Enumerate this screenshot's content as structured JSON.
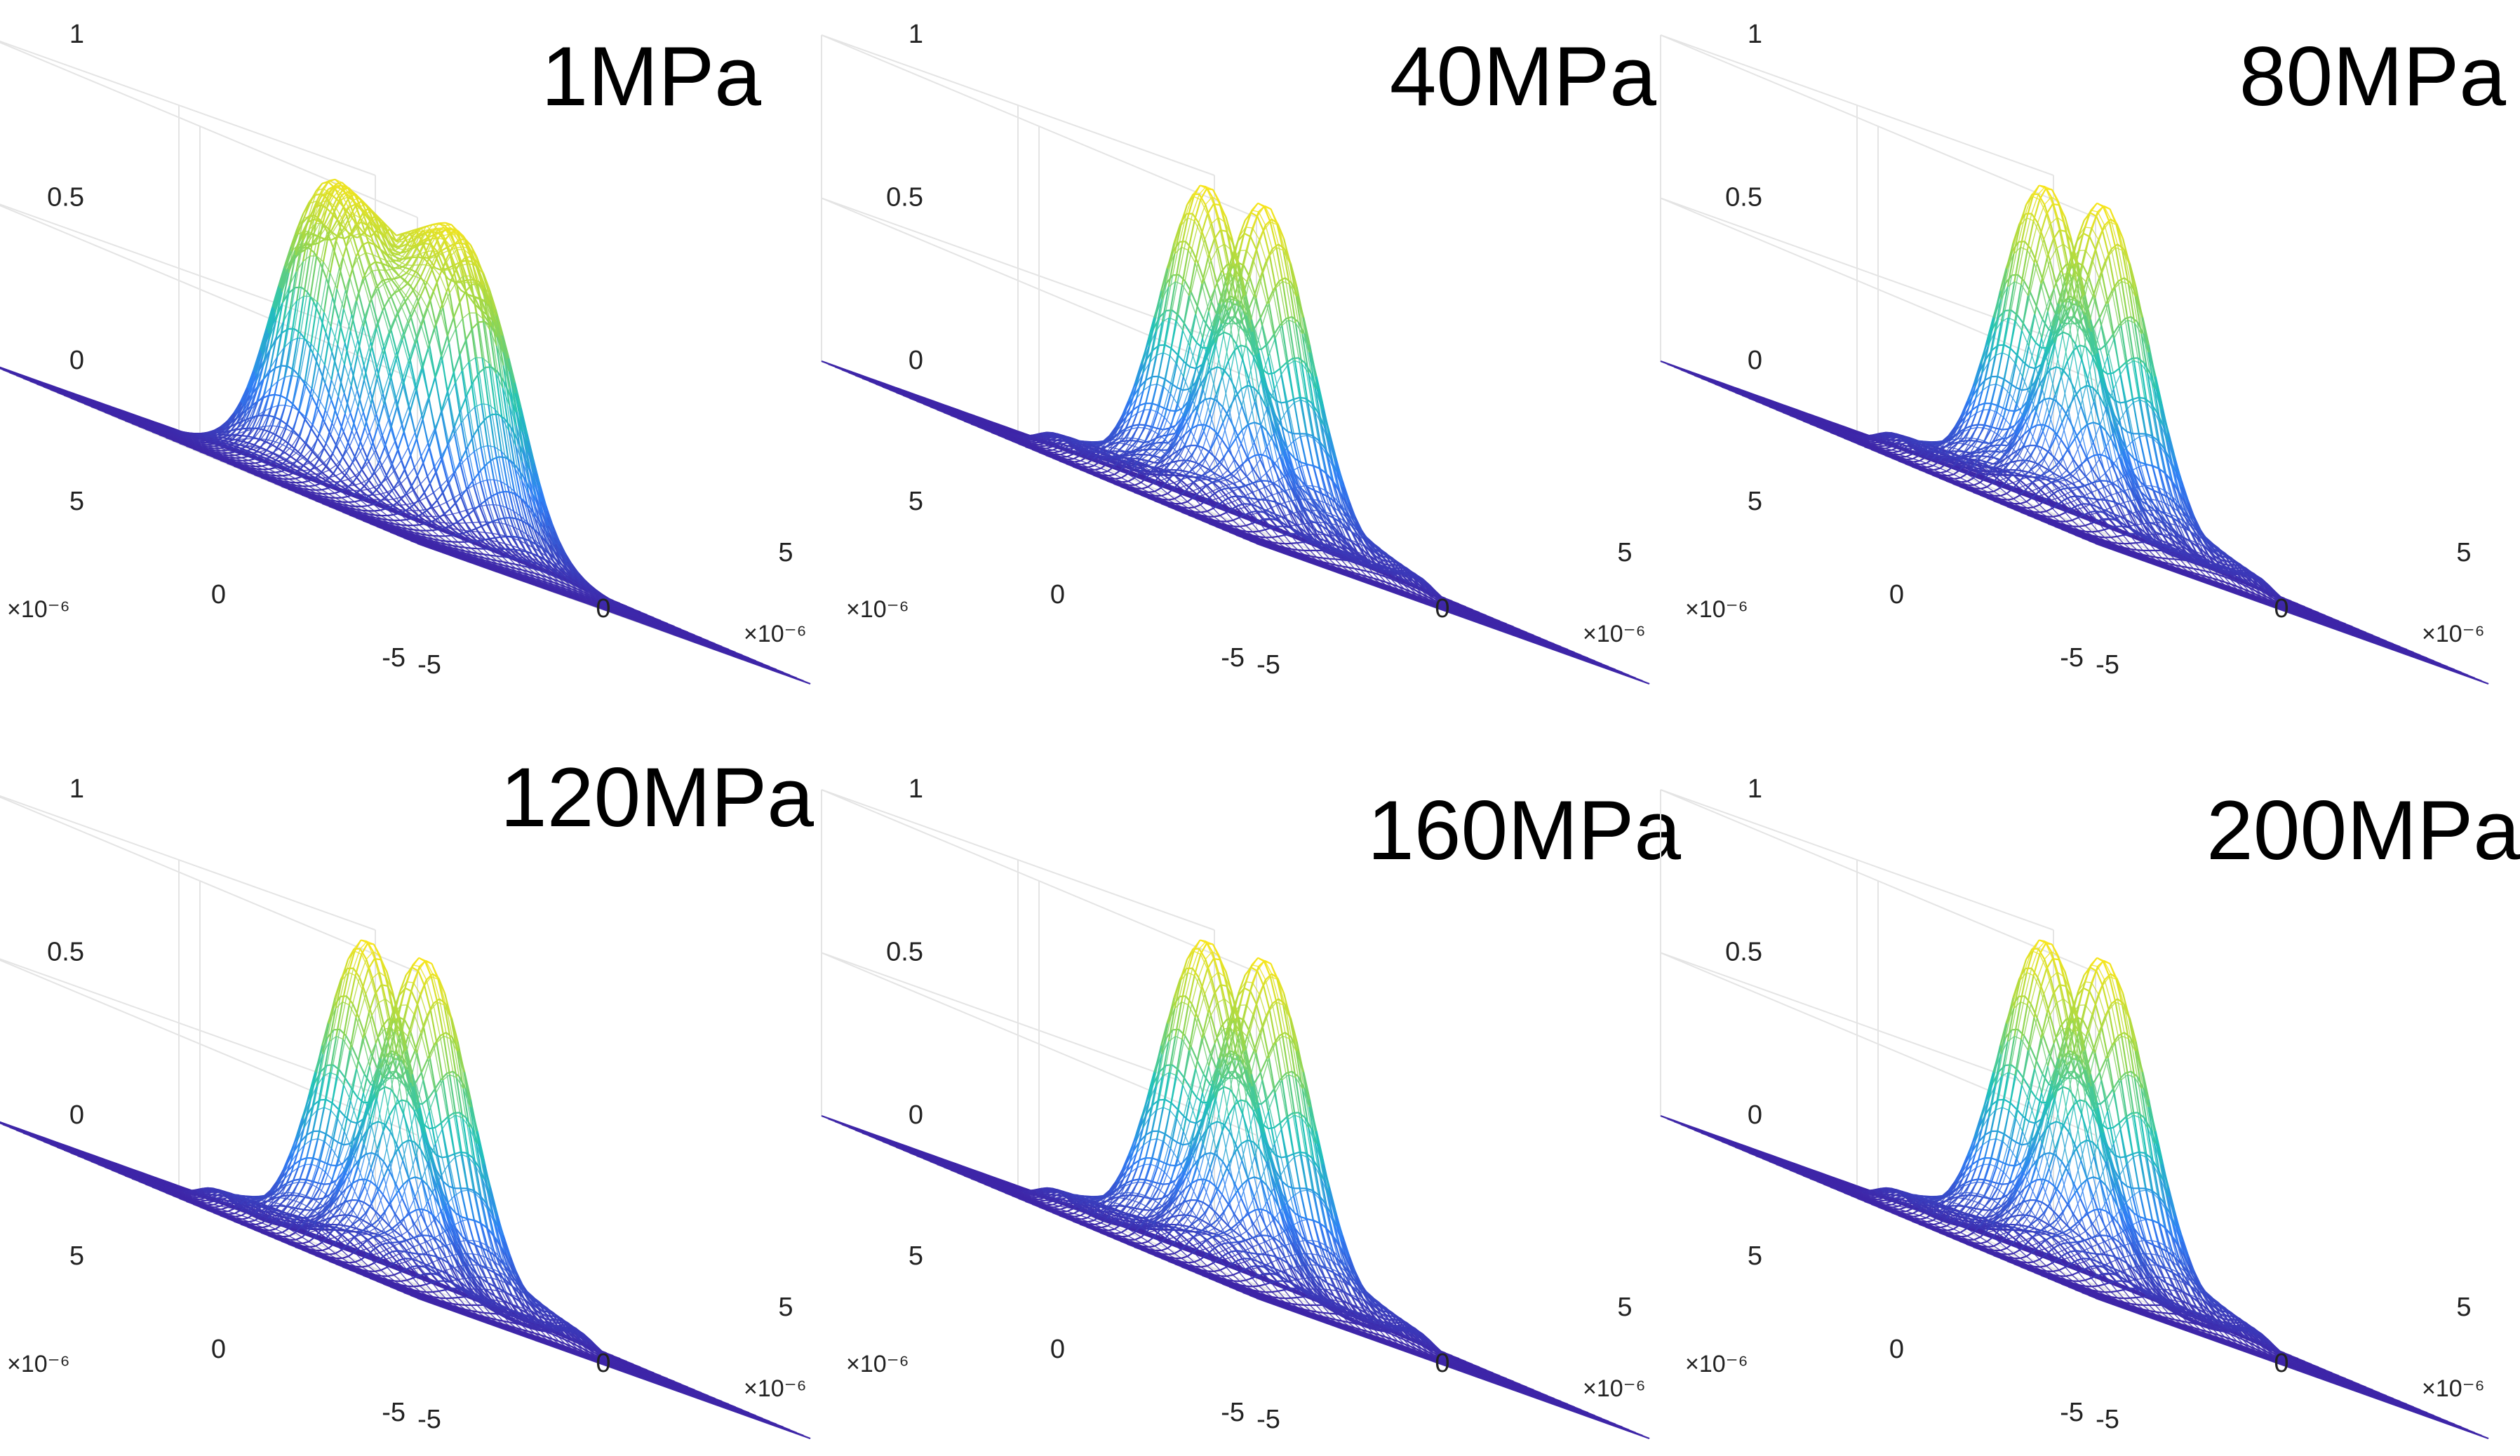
{
  "chart_data": [
    {
      "type": "surface",
      "title": "1MPa",
      "zticks": [
        "0",
        "0.5",
        "1"
      ],
      "xticks": [
        "-5",
        "0",
        "5"
      ],
      "yticks": [
        "-5",
        "0",
        "5"
      ],
      "x_multiplier": "×10⁻⁶",
      "y_multiplier": "×10⁻⁶",
      "xlim": [
        -5e-06,
        5e-06
      ],
      "ylim": [
        -5e-06,
        5e-06
      ],
      "zlim": [
        0,
        1
      ],
      "beam": {
        "kind": "flattop",
        "peak": 1.0,
        "separation": 0.0
      },
      "colormap": [
        "#3e26a8",
        "#2f7ff6",
        "#22c3b8",
        "#9ad74a",
        "#f9e51b"
      ]
    },
    {
      "type": "surface",
      "title": "40MPa",
      "zticks": [
        "0",
        "0.5",
        "1"
      ],
      "xticks": [
        "-5",
        "0",
        "5"
      ],
      "yticks": [
        "-5",
        "0",
        "5"
      ],
      "x_multiplier": "×10⁻⁶",
      "y_multiplier": "×10⁻⁶",
      "xlim": [
        -5e-06,
        5e-06
      ],
      "ylim": [
        -5e-06,
        5e-06
      ],
      "zlim": [
        0,
        1
      ],
      "beam": {
        "kind": "double",
        "peak": 1.0,
        "valley": 0.4
      },
      "colormap": [
        "#3e26a8",
        "#2f7ff6",
        "#22c3b8",
        "#9ad74a",
        "#f9e51b"
      ]
    },
    {
      "type": "surface",
      "title": "80MPa",
      "zticks": [
        "0",
        "0.5",
        "1"
      ],
      "xticks": [
        "-5",
        "0",
        "5"
      ],
      "yticks": [
        "-5",
        "0",
        "5"
      ],
      "x_multiplier": "×10⁻⁶",
      "y_multiplier": "×10⁻⁶",
      "xlim": [
        -5e-06,
        5e-06
      ],
      "ylim": [
        -5e-06,
        5e-06
      ],
      "zlim": [
        0,
        1
      ],
      "beam": {
        "kind": "double",
        "peak": 1.0,
        "valley": 0.38
      },
      "colormap": [
        "#3e26a8",
        "#2f7ff6",
        "#22c3b8",
        "#9ad74a",
        "#f9e51b"
      ]
    },
    {
      "type": "surface",
      "title": "120MPa",
      "zticks": [
        "0",
        "0.5",
        "1"
      ],
      "xticks": [
        "-5",
        "0",
        "5"
      ],
      "yticks": [
        "-5",
        "0",
        "5"
      ],
      "x_multiplier": "×10⁻⁶",
      "y_multiplier": "×10⁻⁶",
      "xlim": [
        -5e-06,
        5e-06
      ],
      "ylim": [
        -5e-06,
        5e-06
      ],
      "zlim": [
        0,
        1
      ],
      "beam": {
        "kind": "double",
        "peak": 1.0,
        "valley": 0.08
      },
      "colormap": [
        "#3e26a8",
        "#2f7ff6",
        "#22c3b8",
        "#9ad74a",
        "#f9e51b"
      ]
    },
    {
      "type": "surface",
      "title": "160MPa",
      "zticks": [
        "0",
        "0.5",
        "1"
      ],
      "xticks": [
        "-5",
        "0",
        "5"
      ],
      "yticks": [
        "-5",
        "0",
        "5"
      ],
      "x_multiplier": "×10⁻⁶",
      "y_multiplier": "×10⁻⁶",
      "xlim": [
        -5e-06,
        5e-06
      ],
      "ylim": [
        -5e-06,
        5e-06
      ],
      "zlim": [
        0,
        1
      ],
      "beam": {
        "kind": "double",
        "peak": 1.0,
        "valley": 0.06
      },
      "colormap": [
        "#3e26a8",
        "#2f7ff6",
        "#22c3b8",
        "#9ad74a",
        "#f9e51b"
      ]
    },
    {
      "type": "surface",
      "title": "200MPa",
      "zticks": [
        "0",
        "0.5",
        "1"
      ],
      "xticks": [
        "-5",
        "0",
        "5"
      ],
      "yticks": [
        "-5",
        "0",
        "5"
      ],
      "x_multiplier": "×10⁻⁶",
      "y_multiplier": "×10⁻⁶",
      "xlim": [
        -5e-06,
        5e-06
      ],
      "ylim": [
        -5e-06,
        5e-06
      ],
      "zlim": [
        0,
        1
      ],
      "beam": {
        "kind": "double",
        "peak": 1.0,
        "valley": 0.05
      },
      "colormap": [
        "#3e26a8",
        "#2f7ff6",
        "#22c3b8",
        "#9ad74a",
        "#f9e51b"
      ]
    }
  ]
}
